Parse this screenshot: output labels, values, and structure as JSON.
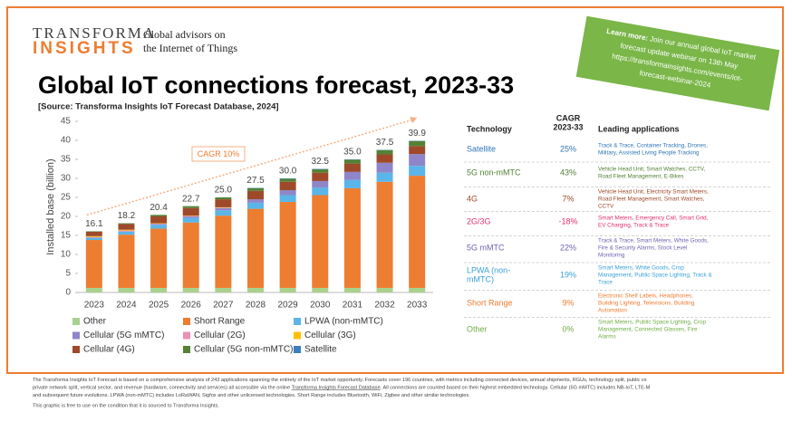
{
  "header": {
    "logo_top": "TRANSFORMA",
    "logo_bottom": "INSIGHTS",
    "tagline": [
      "Global advisors on",
      "the Internet of Things"
    ],
    "title": "Global IoT connections forecast, 2023-33",
    "source": "[Source: Transforma Insights IoT Forecast Database, 2024]"
  },
  "banner": {
    "lead": "Learn more:",
    "lines": [
      " Join our annual global IoT market",
      "forecast update webinar on 13th May",
      "https://transformainsights.com/events/iot-",
      "forecast-webinar-2024"
    ]
  },
  "chart_data": {
    "type": "bar",
    "stacked": true,
    "y_label": "Installed base (billion)",
    "categories": [
      "2023",
      "2024",
      "2025",
      "2026",
      "2027",
      "2028",
      "2029",
      "2030",
      "2031",
      "2032",
      "2033"
    ],
    "series": [
      {
        "name": "Other",
        "color": "#a9d18e",
        "values": [
          1.2,
          1.2,
          1.2,
          1.2,
          1.2,
          1.2,
          1.2,
          1.2,
          1.2,
          1.2,
          1.2
        ]
      },
      {
        "name": "Short Range",
        "color": "#ed7d31",
        "values": [
          12.6,
          14.0,
          15.6,
          17.2,
          19.0,
          20.8,
          22.6,
          24.4,
          26.2,
          27.9,
          29.5
        ]
      },
      {
        "name": "LPWA (non-mMTC)",
        "color": "#5bb5e8",
        "values": [
          0.6,
          0.8,
          1.0,
          1.2,
          1.4,
          1.6,
          1.8,
          2.0,
          2.2,
          2.4,
          2.6
        ]
      },
      {
        "name": "Cellular (5G mMTC)",
        "color": "#8e86c8",
        "values": [
          0.0,
          0.1,
          0.2,
          0.4,
          0.6,
          0.9,
          1.3,
          1.7,
          2.1,
          2.6,
          3.1
        ]
      },
      {
        "name": "Cellular (2G)",
        "color": "#ef8fb8",
        "values": [
          0.2,
          0.2,
          0.1,
          0.1,
          0.1,
          0.0,
          0.0,
          0.0,
          0.0,
          0.0,
          0.0
        ]
      },
      {
        "name": "Cellular (3G)",
        "color": "#ffc000",
        "values": [
          0.2,
          0.2,
          0.1,
          0.1,
          0.1,
          0.0,
          0.0,
          0.0,
          0.0,
          0.0,
          0.0
        ]
      },
      {
        "name": "Cellular (4G)",
        "color": "#9e4a2a",
        "values": [
          1.2,
          1.5,
          1.8,
          2.0,
          2.1,
          2.2,
          2.2,
          2.2,
          2.2,
          2.2,
          2.1
        ]
      },
      {
        "name": "Cellular (5G non-mMTC)",
        "color": "#548235",
        "values": [
          0.1,
          0.2,
          0.4,
          0.5,
          0.5,
          0.7,
          0.8,
          0.9,
          1.0,
          1.1,
          1.3
        ]
      },
      {
        "name": "Satellite",
        "color": "#3a7fc1",
        "values": [
          0.0,
          0.0,
          0.0,
          0.0,
          0.0,
          0.1,
          0.1,
          0.1,
          0.1,
          0.1,
          0.1
        ]
      }
    ],
    "totals": {
      "values": [
        16.1,
        18.2,
        20.4,
        22.7,
        25.0,
        27.5,
        30.0,
        32.5,
        35.0,
        37.5,
        39.9
      ],
      "value_labels": [
        "16.1",
        "18.2",
        "20.4",
        "22.7",
        "25.0",
        "27.5",
        "30.0",
        "32.5",
        "35.0",
        "37.5",
        "39.9"
      ]
    },
    "annotation": "CAGR 10%",
    "ylim": [
      0,
      45
    ],
    "yticks": [
      0,
      5,
      10,
      15,
      20,
      25,
      30,
      35,
      40,
      45
    ],
    "grid": false
  },
  "table": {
    "headers": [
      "Technology",
      [
        "CAGR",
        "2023-33"
      ],
      "Leading applications"
    ],
    "rows": [
      {
        "technology": [
          "Satellite"
        ],
        "color": "#2e75b6",
        "cagr": "25%",
        "applications": [
          "Track & Trace, Container Tracking, Drones,",
          "Military, Assisted Living People Tracking"
        ]
      },
      {
        "technology": [
          "5G non-mMTC"
        ],
        "color": "#548235",
        "cagr": "43%",
        "applications": [
          "Vehicle Head Unit, Smart Watches, CCTV,",
          "Road Fleet Management, E-Bikes"
        ]
      },
      {
        "technology": [
          "4G"
        ],
        "color": "#9e4a2a",
        "cagr": "7%",
        "applications": [
          "Vehicle Head Unit, Electricity Smart Meters,",
          "Road Fleet Management, Smart Watches,",
          "CCTV"
        ]
      },
      {
        "technology": [
          "2G/3G"
        ],
        "color": "#e0306e",
        "cagr": "-18%",
        "applications": [
          "Smart Meters,  Emergency Call, Smart Grid,",
          "EV Charging, Track & Trace"
        ]
      },
      {
        "technology": [
          "5G mMTC"
        ],
        "color": "#6f64b0",
        "cagr": "22%",
        "applications": [
          "Track & Trace, Smart Meters, White Goods,",
          "Fire & Security Alarms, Stock Level",
          "Monitoring"
        ]
      },
      {
        "technology": [
          "LPWA (non-",
          "mMTC)"
        ],
        "color": "#3aa0d8",
        "cagr": "19%",
        "applications": [
          "Smart Meters, White Goods, Crop",
          "Management, Public Space Lighting, Track &",
          "Trace"
        ]
      },
      {
        "technology": [
          "Short Range"
        ],
        "color": "#ed7d31",
        "cagr": "9%",
        "applications": [
          "Electronic Shelf Labels, Headphones,",
          "Building Lighting, Televisions, Building",
          "Automation"
        ]
      },
      {
        "technology": [
          "Other"
        ],
        "color": "#70ad47",
        "cagr": "0%",
        "applications": [
          "Smart Meters, Public Space Lighting, Crop",
          "Management, Connected Glasses, Fire",
          "Alarms"
        ]
      }
    ]
  },
  "footer": {
    "lines": [
      [
        "The Transforma Insights IoT Forecast is based on a comprehensive analysis of 243 applications spanning the entirety of the IoT market opportunity. Forecasts cover 196 countries, with metrics including connected devices, annual shipments, RGUs, technology split, public vs"
      ],
      [
        "private network split, vertical sector, and revenue (hardware, connectivity and services) all accessible via the online ",
        "Transforma Insights Forecast Database",
        ". All connections are counted based on their highest embedded technology. Cellular (5G mMTC) includes NB-IoT, LTE-M"
      ],
      [
        "and subsequent future evolutions. LPWA (non-mMTC) includes LoRaWAN, Sigfox and other unlicensed technologies. Short Range includes Bluetooth, WiFi, Zigbee and other similar technologies."
      ],
      [
        "This graphic is free to use on the condition that it is sourced to Transforma Insights."
      ]
    ]
  }
}
